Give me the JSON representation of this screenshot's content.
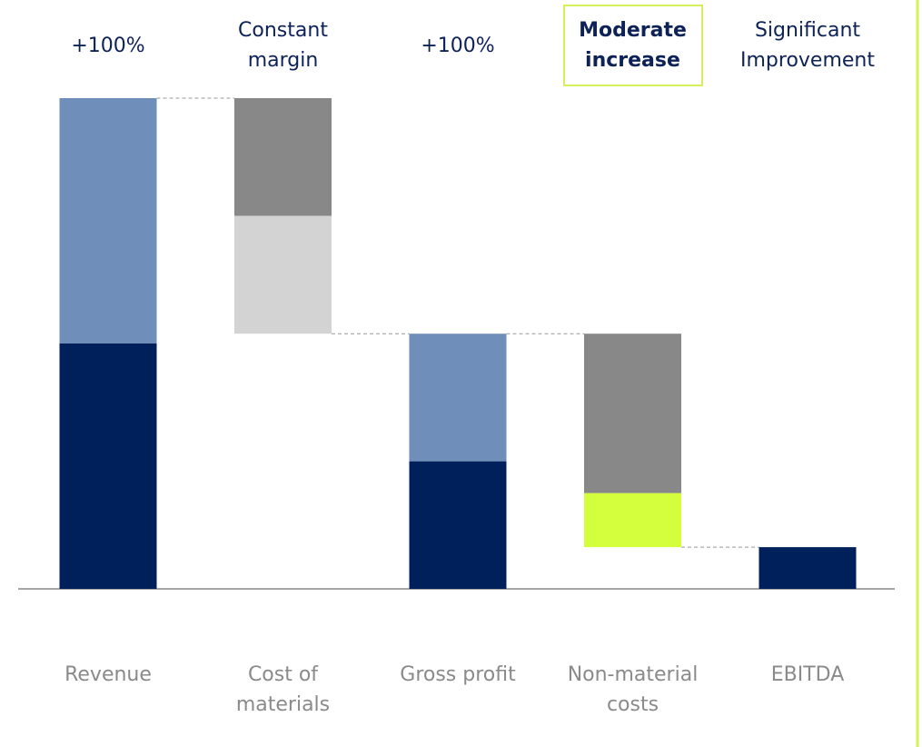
{
  "chart_data": {
    "type": "waterfall",
    "ylim": [
      0,
      100
    ],
    "bars": [
      {
        "category": "Revenue",
        "annotation": "+100%",
        "kind": "total",
        "segments": [
          {
            "value": 50,
            "color": "#00205b"
          },
          {
            "value": 50,
            "color": "#6f8fba"
          }
        ]
      },
      {
        "category": "Cost of materials",
        "annotation": "Constant margin",
        "kind": "decrease",
        "segments": [
          {
            "value": 24,
            "color": "#888888"
          },
          {
            "value": 24,
            "color": "#d3d3d3"
          }
        ]
      },
      {
        "category": "Gross profit",
        "annotation": "+100%",
        "kind": "total",
        "segments": [
          {
            "value": 26,
            "color": "#00205b"
          },
          {
            "value": 26,
            "color": "#6f8fba"
          }
        ]
      },
      {
        "category": "Non-material costs",
        "annotation": "Moderate increase",
        "kind": "decrease",
        "highlight": true,
        "segments": [
          {
            "value": 32.5,
            "color": "#888888"
          },
          {
            "value": 11,
            "color": "#d4ff3c"
          }
        ]
      },
      {
        "category": "EBITDA",
        "annotation": "Significant Improvement",
        "kind": "total",
        "segments": [
          {
            "value": 8.5,
            "color": "#00205b"
          }
        ]
      }
    ]
  }
}
